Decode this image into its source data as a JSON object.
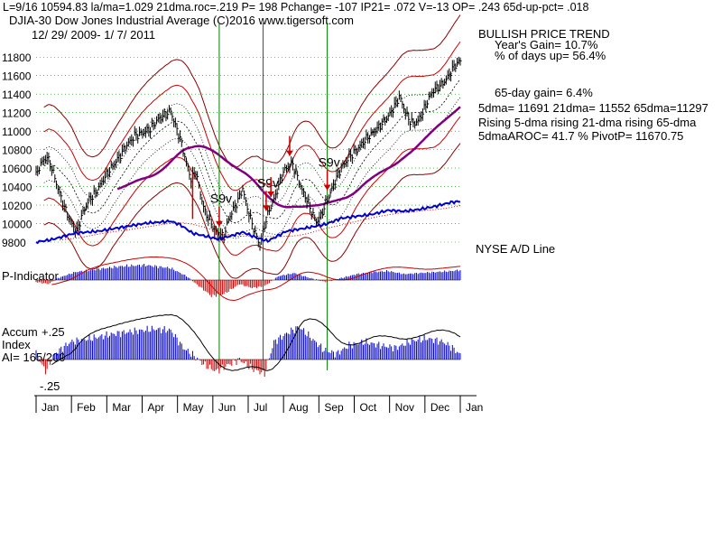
{
  "header": {
    "line1": "L=9/16   10594.83  la/ma=1.029 21dma.roc=.219 P=  198 Pchange= -107 IP21= .072 V=-13 OP= .243 65d-up-pct= .018",
    "line2": "DJIA-30  Dow Jones Industrial Average   (C)2016 www.tigersoft.com",
    "line3": "12/ 29/ 2009- 1/ 7/ 2011"
  },
  "stats": {
    "trend": "BULLISH PRICE TREND",
    "years_gain": "Year's Gain= 10.7%",
    "days_up": "% of days up= 56.4%",
    "gain65": "65-day gain= 6.4%",
    "dma_line": "5dma= 11691 21dma= 11552 65dma=11297",
    "rising_line": "Rising 5-dma rising 21-dma rising 65-dma",
    "aroc_line": "5dmaAROC= 41.7 %  PivotP= 11670.75"
  },
  "panel_labels": {
    "nyse_ad": "NYSE A/D Line",
    "p_indicator": "P-Indicator",
    "accum_top": "+.25",
    "accum": "Accum",
    "index": "Index",
    "ai": "AI= 165/200",
    "minus25": "-.25"
  },
  "colors": {
    "price": "#000000",
    "band_outer": "#8b0000",
    "band_mid": "#cc0000",
    "dma21": "#000000",
    "dma65": "#800080",
    "ad_line": "#0000cc",
    "ad_ma": "#cc0000",
    "positive_bars": "#0000cc",
    "negative_bars": "#cc0000",
    "vertical_lines": "#008000",
    "grid": "#008000",
    "arrows": "#cc0000"
  },
  "chart_data": {
    "type": "line",
    "title": "DJIA-30 Dow Jones Industrial Average",
    "y_ticks": [
      "11800",
      "11600",
      "11400",
      "11200",
      "11000",
      "10800",
      "10600",
      "10400",
      "10200",
      "10000",
      "9800"
    ],
    "ylim": [
      9800,
      11900
    ],
    "months": [
      "Jan",
      "Feb",
      "Mar",
      "Apr",
      "May",
      "Jun",
      "Jul",
      "Aug",
      "Sep",
      "Oct",
      "Nov",
      "Dec",
      "Jan"
    ],
    "price_keypoints": [
      [
        0,
        10520
      ],
      [
        3,
        10650
      ],
      [
        7,
        10720
      ],
      [
        10,
        10600
      ],
      [
        14,
        10380
      ],
      [
        18,
        10180
      ],
      [
        22,
        10020
      ],
      [
        26,
        9920
      ],
      [
        30,
        10120
      ],
      [
        34,
        10260
      ],
      [
        38,
        10330
      ],
      [
        43,
        10480
      ],
      [
        48,
        10600
      ],
      [
        53,
        10720
      ],
      [
        58,
        10850
      ],
      [
        63,
        10950
      ],
      [
        68,
        10980
      ],
      [
        73,
        11020
      ],
      [
        78,
        11130
      ],
      [
        83,
        11180
      ],
      [
        86,
        11220
      ],
      [
        89,
        11060
      ],
      [
        92,
        10920
      ],
      [
        96,
        10660
      ],
      [
        99,
        10480
      ],
      [
        102,
        10570
      ],
      [
        105,
        10320
      ],
      [
        108,
        10120
      ],
      [
        111,
        10040
      ],
      [
        114,
        9930
      ],
      [
        117,
        9880
      ],
      [
        120,
        9860
      ],
      [
        123,
        10050
      ],
      [
        126,
        10150
      ],
      [
        129,
        10250
      ],
      [
        132,
        10380
      ],
      [
        134,
        10230
      ],
      [
        137,
        10050
      ],
      [
        140,
        9900
      ],
      [
        143,
        9760
      ],
      [
        146,
        9980
      ],
      [
        149,
        10150
      ],
      [
        152,
        10260
      ],
      [
        155,
        10410
      ],
      [
        158,
        10560
      ],
      [
        161,
        10620
      ],
      [
        164,
        10640
      ],
      [
        167,
        10500
      ],
      [
        170,
        10360
      ],
      [
        173,
        10260
      ],
      [
        176,
        10130
      ],
      [
        179,
        10020
      ],
      [
        182,
        10080
      ],
      [
        185,
        10220
      ],
      [
        188,
        10330
      ],
      [
        191,
        10460
      ],
      [
        195,
        10600
      ],
      [
        200,
        10720
      ],
      [
        205,
        10800
      ],
      [
        210,
        10900
      ],
      [
        215,
        10980
      ],
      [
        220,
        11060
      ],
      [
        225,
        11160
      ],
      [
        230,
        11300
      ],
      [
        232,
        11380
      ],
      [
        235,
        11250
      ],
      [
        238,
        11130
      ],
      [
        241,
        11080
      ],
      [
        244,
        11110
      ],
      [
        247,
        11200
      ],
      [
        250,
        11320
      ],
      [
        253,
        11420
      ],
      [
        256,
        11470
      ],
      [
        259,
        11500
      ],
      [
        262,
        11560
      ],
      [
        265,
        11640
      ],
      [
        268,
        11720
      ],
      [
        271,
        11760
      ]
    ],
    "ad_keypoints": [
      [
        0,
        0.0
      ],
      [
        10,
        0.05
      ],
      [
        25,
        0.18
      ],
      [
        40,
        0.22
      ],
      [
        55,
        0.3
      ],
      [
        70,
        0.38
      ],
      [
        86,
        0.42
      ],
      [
        92,
        0.35
      ],
      [
        100,
        0.18
      ],
      [
        108,
        0.12
      ],
      [
        116,
        0.06
      ],
      [
        124,
        0.12
      ],
      [
        132,
        0.2
      ],
      [
        140,
        0.1
      ],
      [
        148,
        0.02
      ],
      [
        160,
        0.22
      ],
      [
        172,
        0.28
      ],
      [
        185,
        0.36
      ],
      [
        195,
        0.48
      ],
      [
        205,
        0.52
      ],
      [
        215,
        0.56
      ],
      [
        225,
        0.64
      ],
      [
        235,
        0.62
      ],
      [
        245,
        0.66
      ],
      [
        255,
        0.72
      ],
      [
        265,
        0.8
      ],
      [
        271,
        0.82
      ]
    ],
    "p_indicator_keypoints": [
      [
        0,
        -0.1
      ],
      [
        8,
        -0.2
      ],
      [
        14,
        0.1
      ],
      [
        25,
        0.4
      ],
      [
        40,
        0.55
      ],
      [
        55,
        0.7
      ],
      [
        70,
        0.75
      ],
      [
        86,
        0.6
      ],
      [
        96,
        0.2
      ],
      [
        104,
        -0.3
      ],
      [
        112,
        -0.8
      ],
      [
        120,
        -0.7
      ],
      [
        130,
        -0.2
      ],
      [
        138,
        -0.4
      ],
      [
        146,
        -0.3
      ],
      [
        155,
        0.2
      ],
      [
        165,
        0.35
      ],
      [
        175,
        0.1
      ],
      [
        185,
        -0.1
      ],
      [
        195,
        0.1
      ],
      [
        205,
        0.3
      ],
      [
        215,
        0.4
      ],
      [
        225,
        0.45
      ],
      [
        235,
        0.3
      ],
      [
        245,
        0.35
      ],
      [
        255,
        0.4
      ],
      [
        265,
        0.45
      ],
      [
        271,
        0.5
      ]
    ],
    "accum_keypoints": [
      [
        0,
        0.05
      ],
      [
        6,
        -0.1
      ],
      [
        12,
        0.05
      ],
      [
        22,
        0.15
      ],
      [
        35,
        0.18
      ],
      [
        50,
        0.22
      ],
      [
        62,
        0.24
      ],
      [
        75,
        0.26
      ],
      [
        86,
        0.25
      ],
      [
        94,
        0.1
      ],
      [
        100,
        0.04
      ],
      [
        108,
        -0.05
      ],
      [
        115,
        -0.1
      ],
      [
        122,
        -0.05
      ],
      [
        130,
        0.0
      ],
      [
        138,
        -0.08
      ],
      [
        146,
        -0.12
      ],
      [
        152,
        0.15
      ],
      [
        160,
        0.22
      ],
      [
        168,
        0.28
      ],
      [
        176,
        0.18
      ],
      [
        184,
        0.08
      ],
      [
        192,
        0.05
      ],
      [
        200,
        0.12
      ],
      [
        210,
        0.15
      ],
      [
        220,
        0.12
      ],
      [
        230,
        0.1
      ],
      [
        240,
        0.16
      ],
      [
        250,
        0.18
      ],
      [
        260,
        0.15
      ],
      [
        266,
        0.1
      ],
      [
        271,
        0.04
      ]
    ],
    "signals": [
      {
        "label": "S9v",
        "day": 117
      },
      {
        "label": "S9v",
        "day": 147
      },
      {
        "label": "",
        "day": 150
      },
      {
        "label": "",
        "day": 162
      },
      {
        "label": "S9v",
        "day": 186
      }
    ],
    "vertical_line_days": [
      117,
      145,
      186
    ]
  }
}
